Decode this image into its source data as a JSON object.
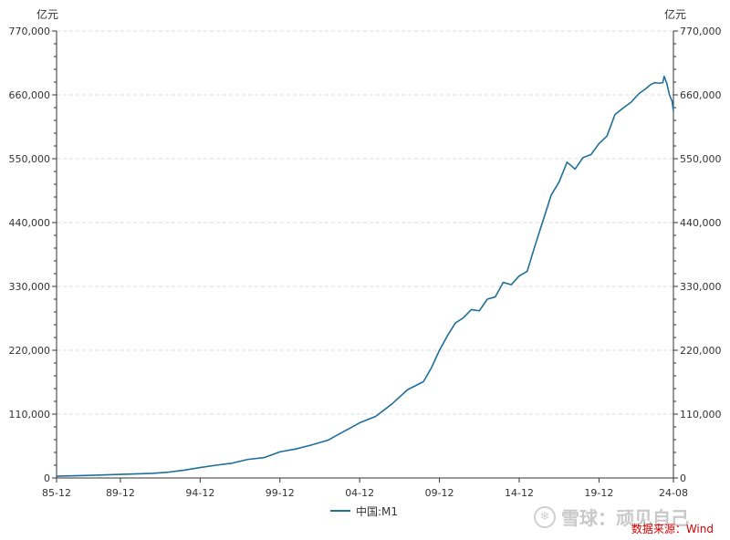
{
  "chart_data": {
    "type": "line",
    "unit_left": "亿元",
    "unit_right": "亿元",
    "y_ticks": [
      "0",
      "110,000",
      "220,000",
      "330,000",
      "440,000",
      "550,000",
      "660,000",
      "770,000"
    ],
    "x_ticks": [
      "85-12",
      "89-12",
      "94-12",
      "99-12",
      "04-12",
      "09-12",
      "14-12",
      "19-12",
      "24-08"
    ],
    "ylim": [
      0,
      770000
    ],
    "grid": "horizontal dashed",
    "legend": "bottom-center",
    "series": [
      {
        "name": "中国:M1",
        "color": "#1f6e9c",
        "points": [
          [
            "1985-12",
            3000
          ],
          [
            "1987-12",
            4500
          ],
          [
            "1989-12",
            6200
          ],
          [
            "1991-12",
            8000
          ],
          [
            "1992-12",
            10000
          ],
          [
            "1993-12",
            13500
          ],
          [
            "1994-12",
            18000
          ],
          [
            "1995-12",
            22000
          ],
          [
            "1996-12",
            25500
          ],
          [
            "1997-12",
            32000
          ],
          [
            "1998-12",
            35000
          ],
          [
            "1999-12",
            45000
          ],
          [
            "2000-12",
            50000
          ],
          [
            "2001-12",
            57000
          ],
          [
            "2002-12",
            65000
          ],
          [
            "2003-12",
            80000
          ],
          [
            "2004-12",
            95000
          ],
          [
            "2005-12",
            106000
          ],
          [
            "2006-12",
            127000
          ],
          [
            "2007-12",
            152000
          ],
          [
            "2008-12",
            166000
          ],
          [
            "2009-06",
            190000
          ],
          [
            "2009-12",
            220000
          ],
          [
            "2010-06",
            245000
          ],
          [
            "2010-12",
            267000
          ],
          [
            "2011-06",
            276000
          ],
          [
            "2011-12",
            290000
          ],
          [
            "2012-06",
            288000
          ],
          [
            "2012-12",
            308000
          ],
          [
            "2013-06",
            312000
          ],
          [
            "2013-12",
            337000
          ],
          [
            "2014-06",
            333000
          ],
          [
            "2014-12",
            348000
          ],
          [
            "2015-06",
            356000
          ],
          [
            "2015-12",
            401000
          ],
          [
            "2016-06",
            444000
          ],
          [
            "2016-12",
            487000
          ],
          [
            "2017-06",
            510000
          ],
          [
            "2017-12",
            544000
          ],
          [
            "2018-06",
            532000
          ],
          [
            "2018-12",
            552000
          ],
          [
            "2019-06",
            557000
          ],
          [
            "2019-12",
            576000
          ],
          [
            "2020-06",
            589000
          ],
          [
            "2020-12",
            626000
          ],
          [
            "2021-06",
            637000
          ],
          [
            "2021-12",
            647000
          ],
          [
            "2022-06",
            662000
          ],
          [
            "2022-12",
            672000
          ],
          [
            "2023-03",
            678000
          ],
          [
            "2023-06",
            681000
          ],
          [
            "2023-09",
            680000
          ],
          [
            "2023-12",
            681000
          ],
          [
            "2024-01",
            692000
          ],
          [
            "2024-03",
            680000
          ],
          [
            "2024-05",
            660000
          ],
          [
            "2024-07",
            649000
          ],
          [
            "2024-08",
            632000
          ]
        ]
      }
    ]
  },
  "watermark": {
    "icon": "snowball-logo-icon",
    "text": "雪球：顽见自己"
  },
  "source": "数据来源：Wind"
}
